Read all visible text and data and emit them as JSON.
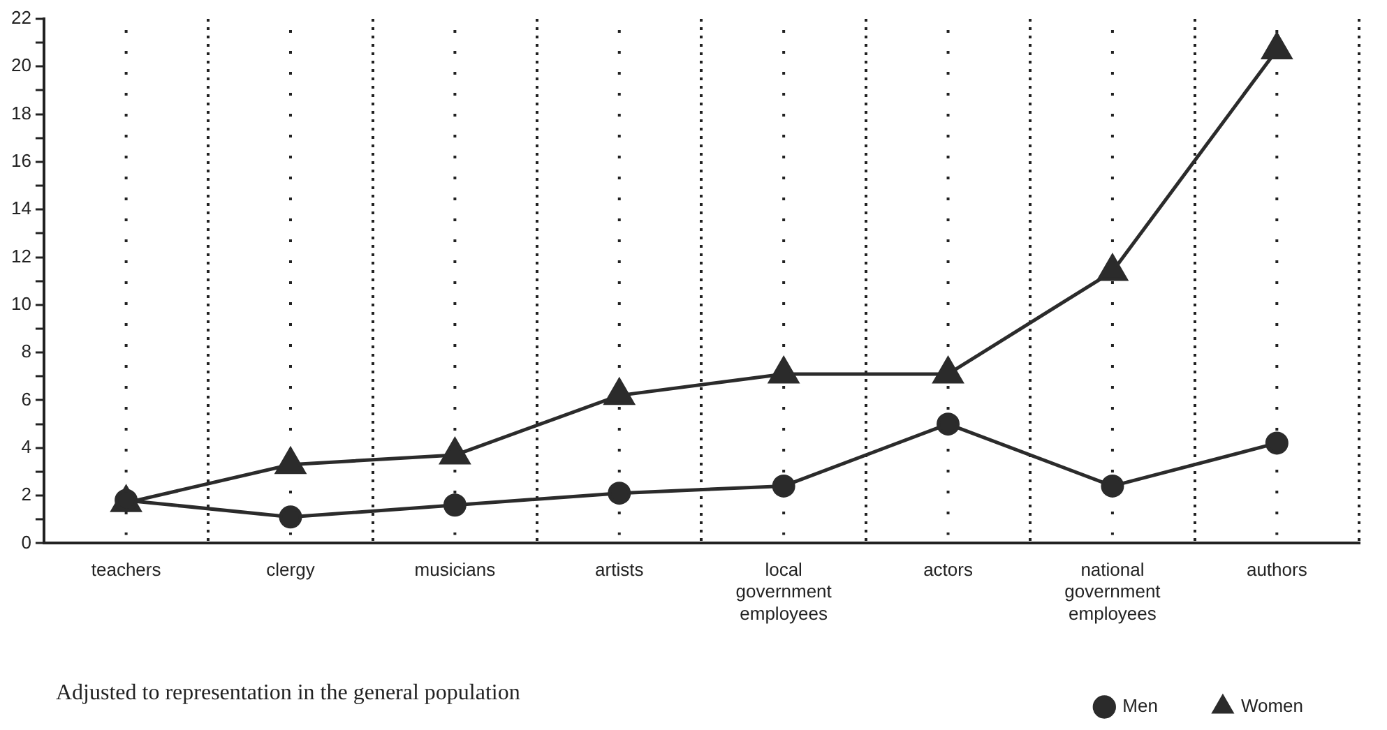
{
  "chart_data": {
    "type": "line",
    "categories": [
      "teachers",
      "clergy",
      "musicians",
      "artists",
      "local government employees",
      "actors",
      "national government employees",
      "authors"
    ],
    "series": [
      {
        "name": "Men",
        "color": "#2b2b2b",
        "marker": "circle",
        "values": [
          1.8,
          1.1,
          1.6,
          2.1,
          2.4,
          5.0,
          2.4,
          4.2
        ]
      },
      {
        "name": "Women",
        "color": "#2b2b2b",
        "marker": "triangle",
        "values": [
          1.7,
          3.3,
          3.7,
          6.2,
          7.1,
          7.1,
          11.4,
          20.7
        ]
      }
    ],
    "ylim": [
      0,
      22
    ],
    "yticks": [
      0,
      {
        "value": 1,
        "label": null
      },
      2,
      {
        "value": 3,
        "label": null
      },
      4,
      {
        "value": 5,
        "label": null
      },
      6,
      {
        "value": 7,
        "label": null
      },
      8,
      {
        "value": 9,
        "label": null
      },
      10,
      {
        "value": 11,
        "label": null
      },
      12,
      {
        "value": 13,
        "label": null
      },
      14,
      {
        "value": 15,
        "label": null
      },
      16,
      {
        "value": 17,
        "label": null
      },
      18,
      {
        "value": 19,
        "label": null
      },
      20,
      {
        "value": 21,
        "label": null
      },
      22
    ],
    "grid": "x",
    "legend": "bottom right",
    "line_style": "solid",
    "annotations": [
      "Adjusted to representation in the general population"
    ]
  }
}
